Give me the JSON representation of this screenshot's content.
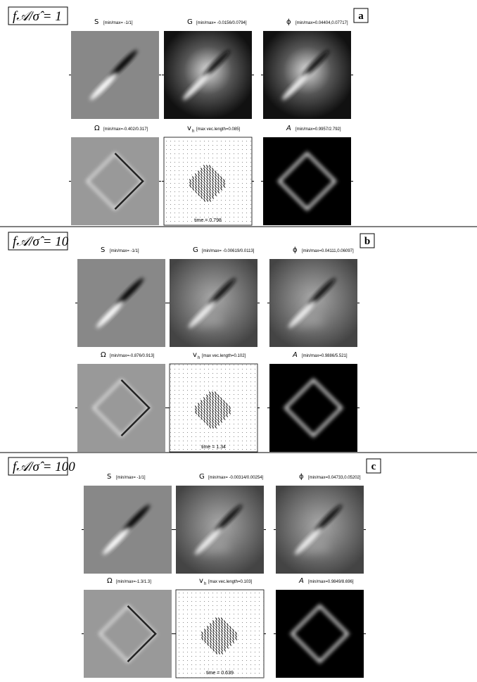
{
  "panels": [
    {
      "label": "f𝒜/σ̂ = 1",
      "letter": "a",
      "time": "time = 0.798",
      "images": [
        {
          "symbol": "S",
          "range": "[min/max= -1/1]"
        },
        {
          "symbol": "G",
          "range": "[min/max= -0.0156/0.0794]"
        },
        {
          "symbol": "ϕ",
          "range": "[min/max=0.04404,0.07717]"
        },
        {
          "symbol": "Ω",
          "range": "[min/max=-0.402/0.317]"
        },
        {
          "symbol": "v",
          "sub": "h",
          "range": "[max vec.length=0.085]"
        },
        {
          "symbol": "A",
          "range": "[min/max=0.9957/2.792]"
        }
      ]
    },
    {
      "label": "f𝒜/σ̂ = 10",
      "letter": "b",
      "time": "time = 1.34",
      "images": [
        {
          "symbol": "S",
          "range": "[min/max= -1/1]"
        },
        {
          "symbol": "G",
          "range": "[min/max= -0.00619/0.0113]"
        },
        {
          "symbol": "ϕ",
          "range": "[min/max=0.04111,0.06097]"
        },
        {
          "symbol": "Ω",
          "range": "[min/max=-0.876/0.913]"
        },
        {
          "symbol": "v",
          "sub": "h",
          "range": "[max vec.length=0.102]"
        },
        {
          "symbol": "A",
          "range": "[min/max=0.9886/5.521]"
        }
      ]
    },
    {
      "label": "f𝒜/σ̂ = 100",
      "letter": "c",
      "time": "time = 0.639",
      "images": [
        {
          "symbol": "S",
          "range": "[min/max= -1/1]"
        },
        {
          "symbol": "G",
          "range": "[min/max= -0.00314/0.00254]"
        },
        {
          "symbol": "ϕ",
          "range": "[min/max=0.04733,0.05202]"
        },
        {
          "symbol": "Ω",
          "range": "[min/max=-1.3/1.3]"
        },
        {
          "symbol": "v",
          "sub": "h",
          "range": "[max vec.length=0.103]"
        },
        {
          "symbol": "A",
          "range": "[min/max=0.9849/8.696]"
        }
      ]
    }
  ]
}
